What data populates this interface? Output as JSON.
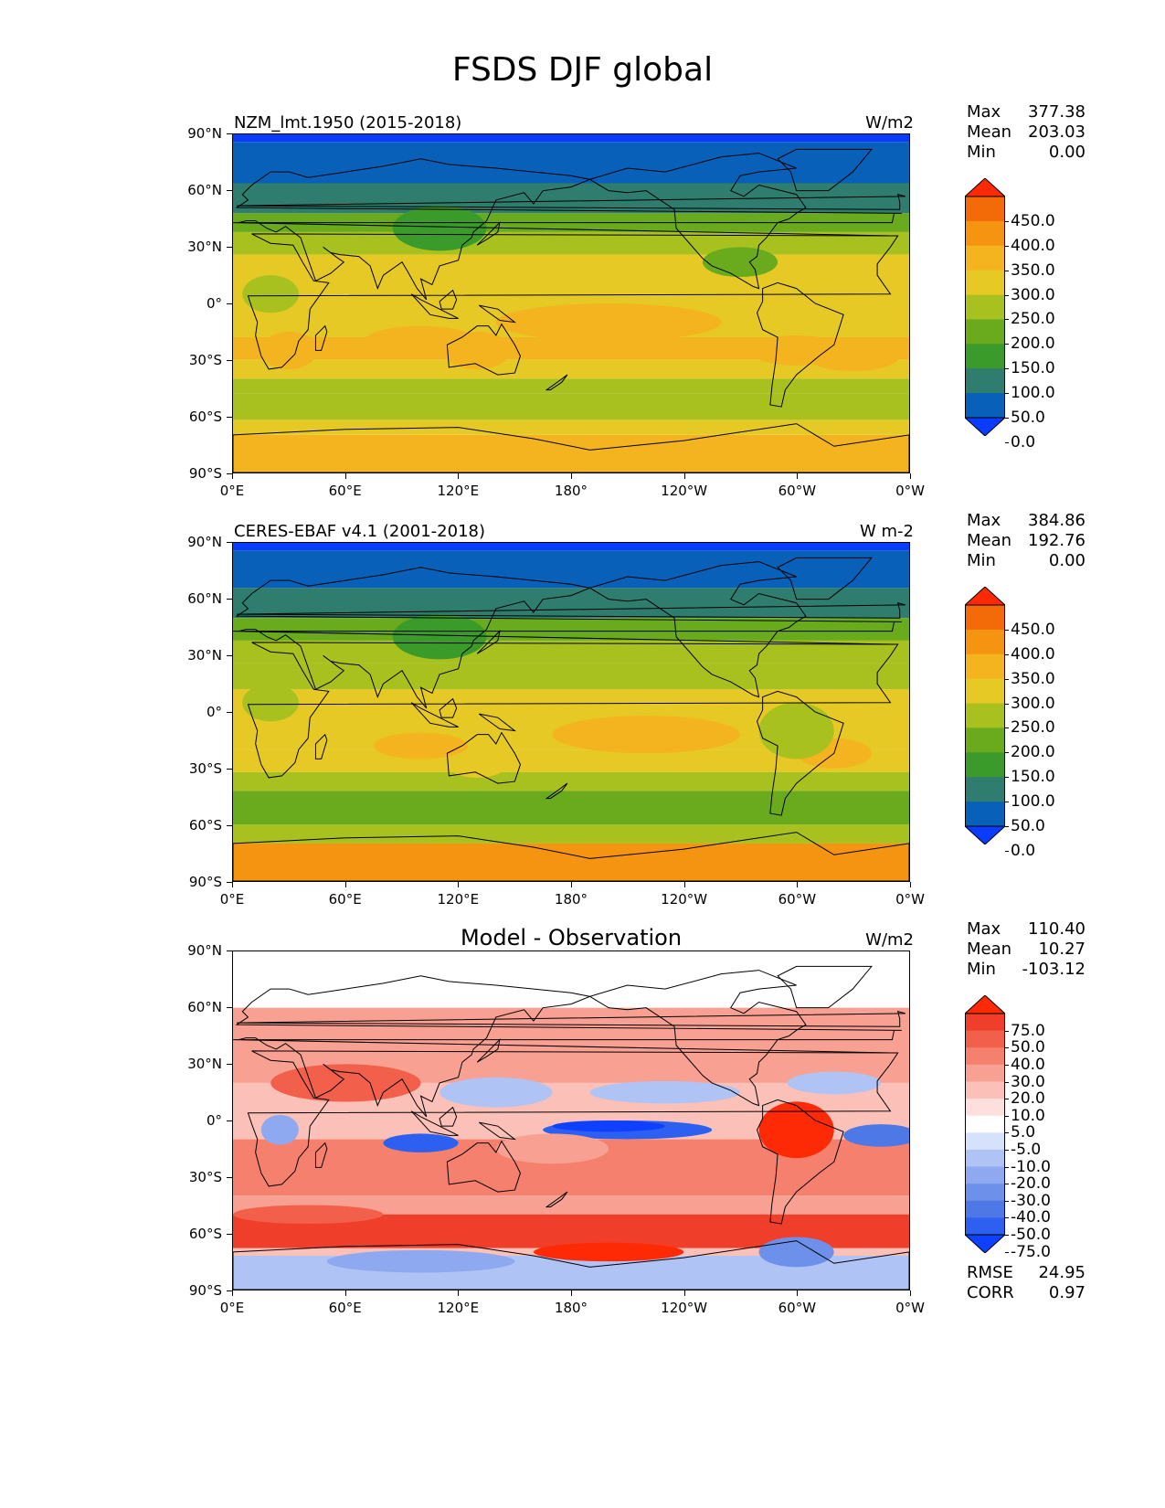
{
  "figure_title": "FSDS DJF global",
  "x_ticks": [
    "0°E",
    "60°E",
    "120°E",
    "180°",
    "120°W",
    "60°W",
    "0°W"
  ],
  "y_ticks": [
    "90°N",
    "60°N",
    "30°N",
    "0°",
    "30°S",
    "60°S",
    "90°S"
  ],
  "panels": [
    {
      "left_title": "NZM_lmt.1950 (2015-2018)",
      "center_title": "",
      "units": "W/m2",
      "stats": {
        "max_label": "Max",
        "max": "377.38",
        "mean_label": "Mean",
        "mean": "203.03",
        "min_label": "Min",
        "min": "0.00"
      },
      "colorbar_labels": [
        "450.0",
        "400.0",
        "350.0",
        "300.0",
        "250.0",
        "200.0",
        "150.0",
        "100.0",
        "50.0",
        "0.0"
      ]
    },
    {
      "left_title": "CERES-EBAF v4.1 (2001-2018)",
      "center_title": "",
      "units": "W m-2",
      "stats": {
        "max_label": "Max",
        "max": "384.86",
        "mean_label": "Mean",
        "mean": "192.76",
        "min_label": "Min",
        "min": "0.00"
      },
      "colorbar_labels": [
        "450.0",
        "400.0",
        "350.0",
        "300.0",
        "250.0",
        "200.0",
        "150.0",
        "100.0",
        "50.0",
        "0.0"
      ]
    },
    {
      "left_title": "",
      "center_title": "Model - Observation",
      "units": "W/m2",
      "stats": {
        "max_label": "Max",
        "max": "110.40",
        "mean_label": "Mean",
        "mean": "10.27",
        "min_label": "Min",
        "min": "-103.12"
      },
      "colorbar_labels": [
        "75.0",
        "50.0",
        "40.0",
        "30.0",
        "20.0",
        "10.0",
        "5.0",
        "-5.0",
        "-10.0",
        "-20.0",
        "-30.0",
        "-40.0",
        "-50.0",
        "-75.0"
      ],
      "extra": {
        "rmse_label": "RMSE",
        "rmse": "24.95",
        "corr_label": "CORR",
        "corr": "0.97"
      }
    }
  ],
  "colors": {
    "abs_scale": [
      "#0a3cff",
      "#0860b8",
      "#2e7d6e",
      "#3a9a2a",
      "#6aab1e",
      "#a9c11f",
      "#e6c925",
      "#f4b41f",
      "#f59410",
      "#f36a08",
      "#fb2a05"
    ],
    "diff_scale": [
      "#1040ff",
      "#2d60f0",
      "#4d78e6",
      "#6d91eb",
      "#8fa9f0",
      "#b0c3f5",
      "#d6e1fb",
      "#ffffff",
      "#fde0dd",
      "#fbc0b8",
      "#f8a092",
      "#f5806e",
      "#f2604c",
      "#ef3f2a",
      "#fd2a05"
    ]
  }
}
